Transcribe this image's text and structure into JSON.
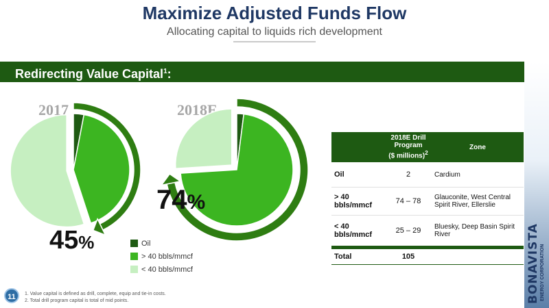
{
  "header": {
    "title": "Maximize Adjusted Funds Flow",
    "subtitle": "Allocating capital to liquids rich development"
  },
  "section": {
    "title": "Redirecting Value Capital",
    "superscript": "1",
    "colon": ":"
  },
  "chart_data": [
    {
      "type": "pie",
      "title": "2017",
      "categories": [
        "Oil",
        "> 40 bbls/mmcf",
        "< 40 bbls/mmcf"
      ],
      "values": [
        3,
        42,
        55
      ],
      "highlight_label": "45%",
      "highlight_number": "45",
      "highlight_symbol": "%",
      "colors": [
        "#1e5a12",
        "#3cb521",
        "#c6efc1"
      ]
    },
    {
      "type": "pie",
      "title": "2018E",
      "categories": [
        "Oil",
        "> 40 bbls/mmcf",
        "< 40 bbls/mmcf"
      ],
      "values": [
        2,
        72,
        26
      ],
      "highlight_label": "74%",
      "highlight_number": "74",
      "highlight_symbol": "%",
      "colors": [
        "#1e5a12",
        "#3cb521",
        "#c6efc1"
      ]
    }
  ],
  "legend": [
    {
      "label": "Oil",
      "color": "#1e5a12"
    },
    {
      "label": "> 40 bbls/mmcf",
      "color": "#3cb521"
    },
    {
      "label": "< 40 bbls/mmcf",
      "color": "#c6efc1"
    }
  ],
  "table": {
    "headers": {
      "col1": "",
      "col2_line1": "2018E Drill",
      "col2_line2": "Program",
      "col2_line3": "($ millions)",
      "col2_sup": "2",
      "col3": "Zone"
    },
    "rows": [
      {
        "category": "Oil",
        "program": "2",
        "zone": "Cardium"
      },
      {
        "category": "> 40 bbls/mmcf",
        "program": "74 – 78",
        "zone": "Glauconite, West Central Spirit River, Ellerslie"
      },
      {
        "category": "< 40 bbls/mmcf",
        "program": "25 – 29",
        "zone": "Bluesky, Deep Basin Spirit River"
      }
    ],
    "total": {
      "label": "Total",
      "value": "105"
    }
  },
  "footer": {
    "page_number": "11",
    "footnote1": "1. Value capital is defined as drill, complete, equip and tie-in costs.",
    "footnote2": "2. Total drill program capital is total of mid points."
  },
  "brand": {
    "logo_text": "BONAVISTA",
    "tagline": "ENERGY CORPORATION",
    "colors": {
      "primary": "#1f3864",
      "accent_green": "#1e5a12"
    }
  }
}
